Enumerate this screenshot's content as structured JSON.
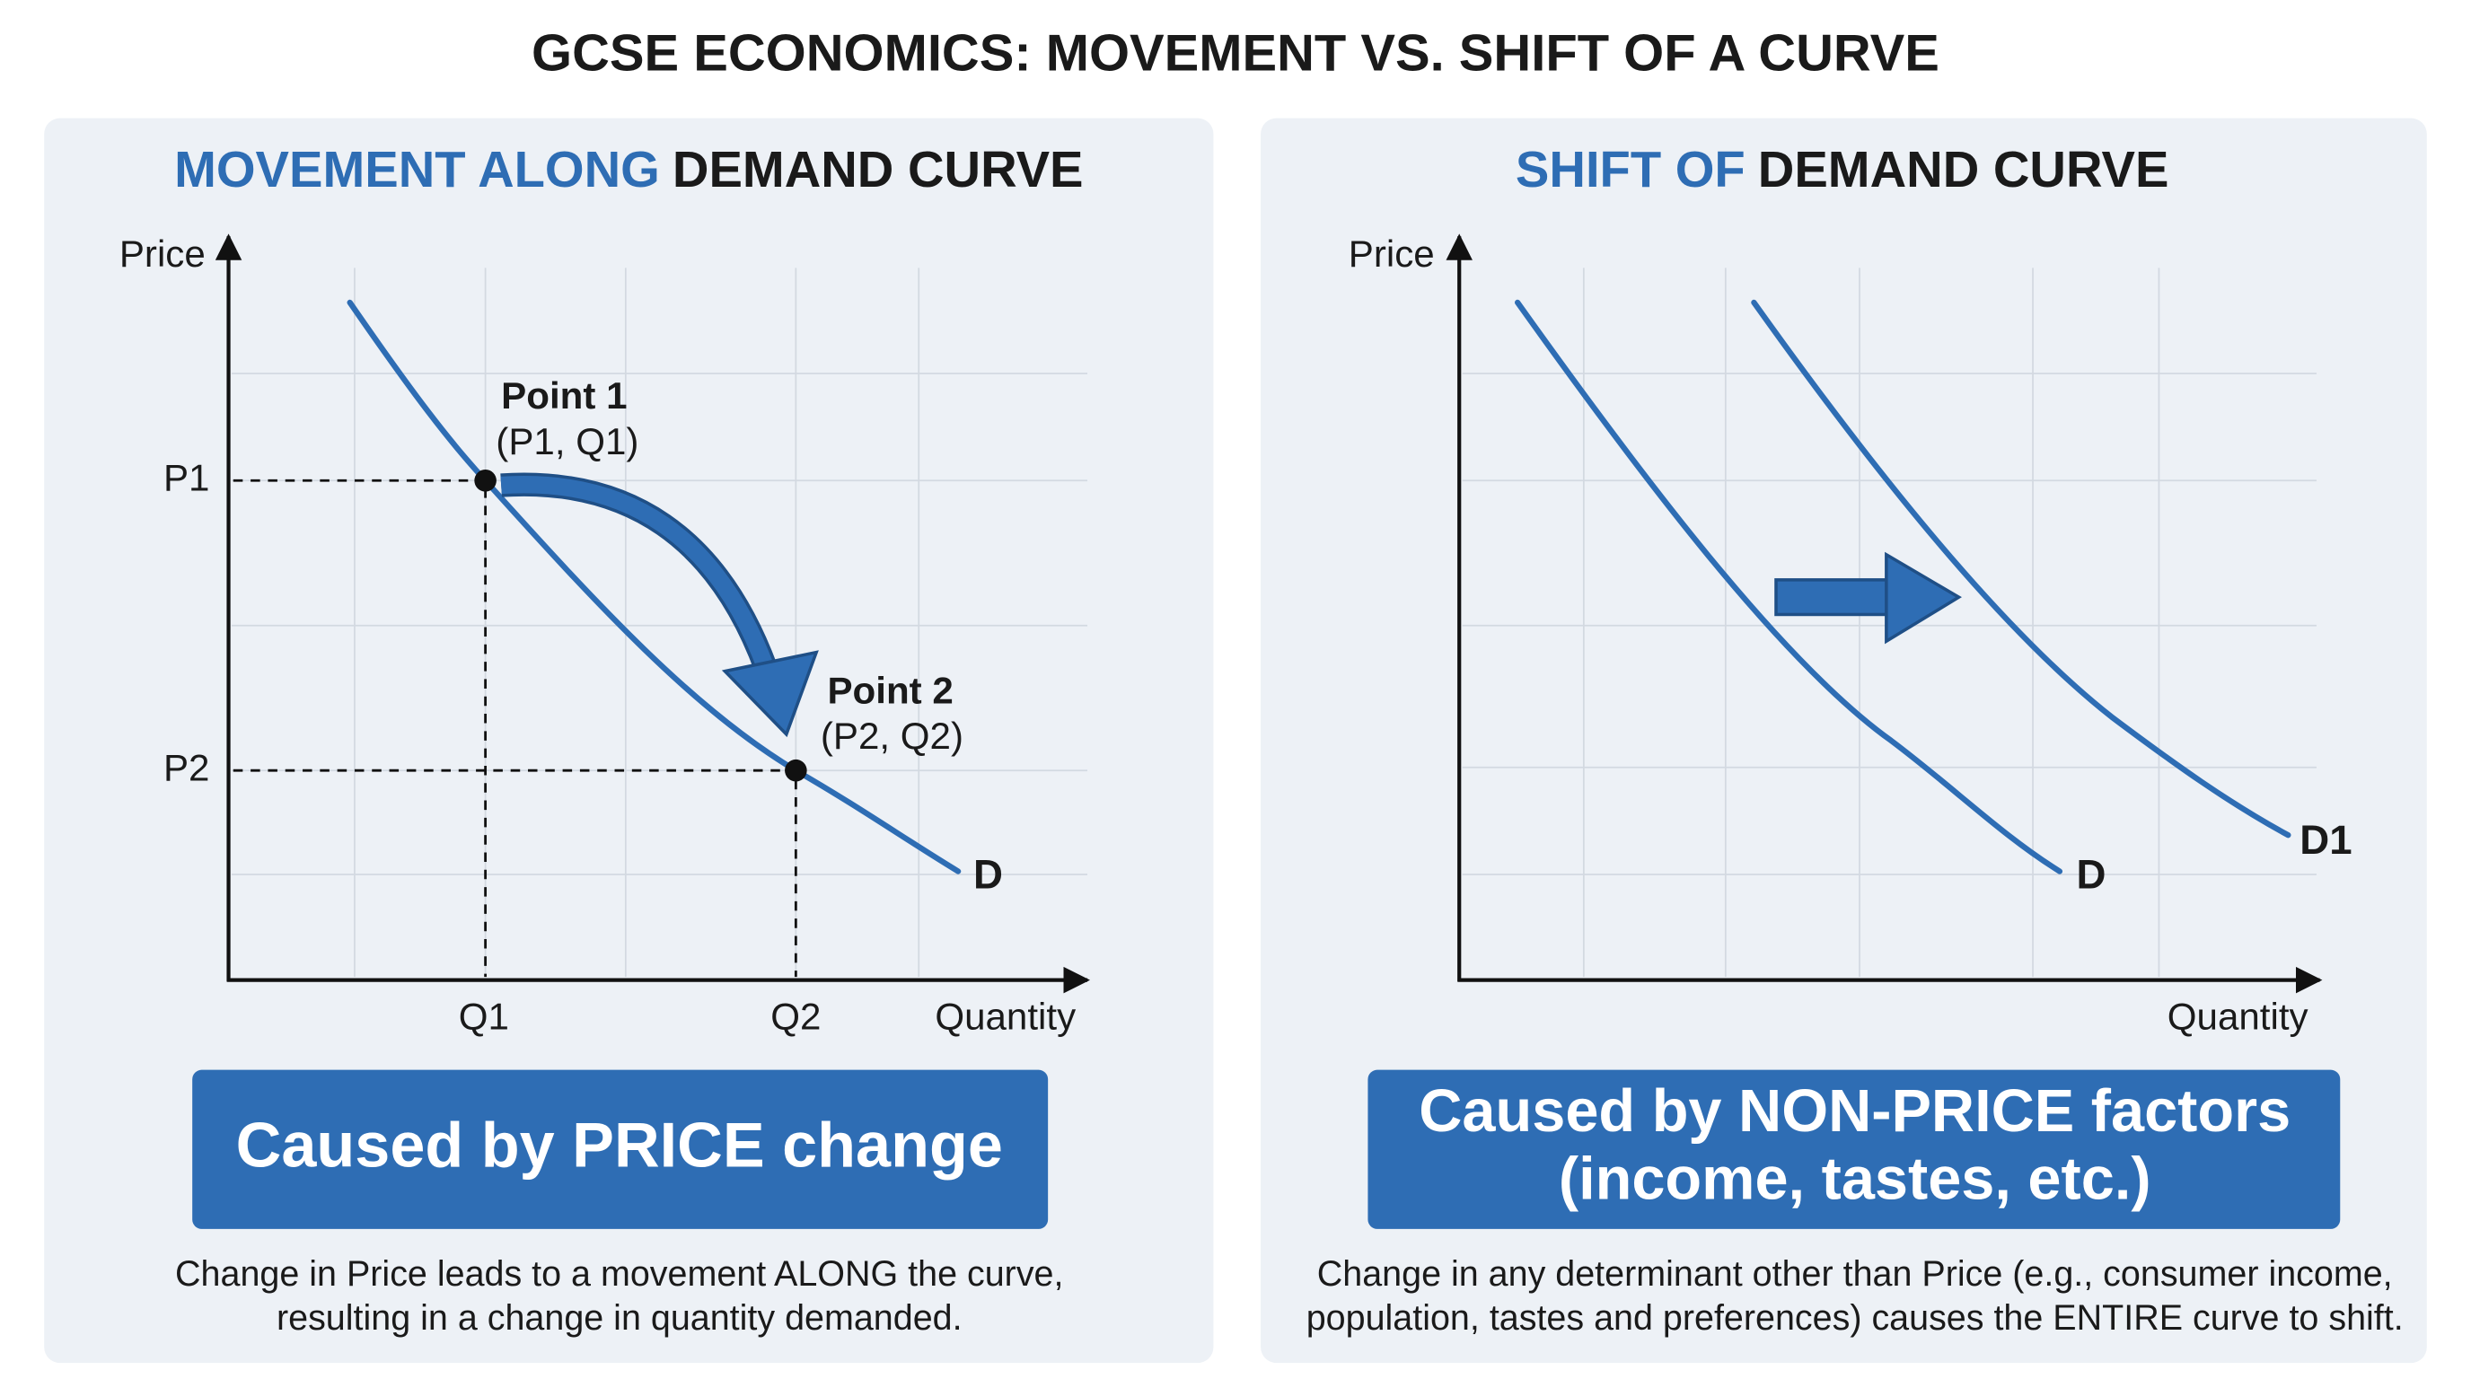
{
  "title": "GCSE ECONOMICS: MOVEMENT VS. SHIFT OF A CURVE",
  "panels": [
    {
      "heading_highlight": "MOVEMENT ALONG",
      "heading_rest": "DEMAND CURVE",
      "y_axis_label": "Price",
      "x_axis_label": "Quantity",
      "price_labels": [
        "P1",
        "P2"
      ],
      "quantity_labels": [
        "Q1",
        "Q2"
      ],
      "points": [
        {
          "name": "Point 1",
          "coords": "(P1, Q1)"
        },
        {
          "name": "Point 2",
          "coords": "(P2, Q2)"
        }
      ],
      "curve_labels": [
        "D"
      ],
      "cause": [
        "Caused by PRICE change"
      ],
      "description": [
        "Change in Price leads to a movement ALONG the curve,",
        "resulting in a change in quantity demanded."
      ]
    },
    {
      "heading_highlight": "SHIFT OF",
      "heading_rest": "DEMAND CURVE",
      "y_axis_label": "Price",
      "x_axis_label": "Quantity",
      "curve_labels": [
        "D",
        "D1"
      ],
      "cause": [
        "Caused by NON-PRICE factors",
        "(income, tastes, etc.)"
      ],
      "description": [
        "Change in any determinant other than Price (e.g., consumer income,",
        "population, tastes and preferences) causes the ENTIRE curve to shift."
      ]
    }
  ]
}
